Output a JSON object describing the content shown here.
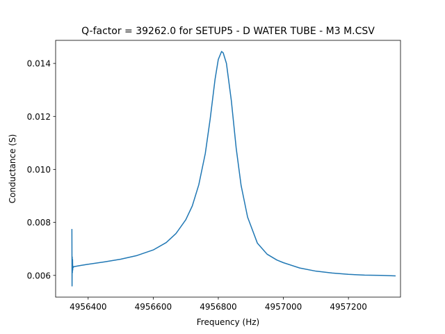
{
  "chart_data": {
    "type": "line",
    "title": "Q-factor = 39262.0 for SETUP5 - D WATER TUBE - M3 M.CSV",
    "xlabel": "Frequency (Hz)",
    "ylabel": "Conductance (S)",
    "xlim": [
      4956300,
      4957360
    ],
    "ylim": [
      0.00518,
      0.01487
    ],
    "xticks": [
      4956400,
      4956600,
      4956800,
      4957000,
      4957200
    ],
    "xtick_labels": [
      "4956400",
      "4956600",
      "4956800",
      "4957000",
      "4957200"
    ],
    "yticks": [
      0.006,
      0.008,
      0.01,
      0.012,
      0.014
    ],
    "ytick_labels": [
      "0.006",
      "0.008",
      "0.010",
      "0.012",
      "0.014"
    ],
    "grid": false,
    "series": [
      {
        "color": "#1f77b4",
        "x": [
          4956350,
          4956350.5,
          4956351,
          4956351.5,
          4956352,
          4956352.5,
          4956353,
          4956354,
          4956356,
          4956360,
          4956380,
          4956400,
          4956450,
          4956500,
          4956550,
          4956600,
          4956640,
          4956670,
          4956700,
          4956720,
          4956740,
          4956760,
          4956775,
          4956790,
          4956800,
          4956810,
          4956815,
          4956825,
          4956840,
          4956855,
          4956870,
          4956890,
          4956920,
          4956950,
          4956980,
          4957000,
          4957050,
          4957100,
          4957150,
          4957200,
          4957250,
          4957300,
          4957345
        ],
        "y": [
          0.00775,
          0.0056,
          0.0067,
          0.0061,
          0.0066,
          0.0062,
          0.00635,
          0.0063,
          0.00633,
          0.00634,
          0.00638,
          0.00642,
          0.00651,
          0.00661,
          0.00675,
          0.00696,
          0.00724,
          0.00758,
          0.0081,
          0.00862,
          0.00942,
          0.0106,
          0.0119,
          0.0134,
          0.01415,
          0.01445,
          0.0144,
          0.014,
          0.0126,
          0.0108,
          0.0094,
          0.0082,
          0.00722,
          0.0068,
          0.00658,
          0.00648,
          0.00628,
          0.00616,
          0.00609,
          0.00604,
          0.00601,
          0.006,
          0.00598
        ]
      }
    ]
  }
}
